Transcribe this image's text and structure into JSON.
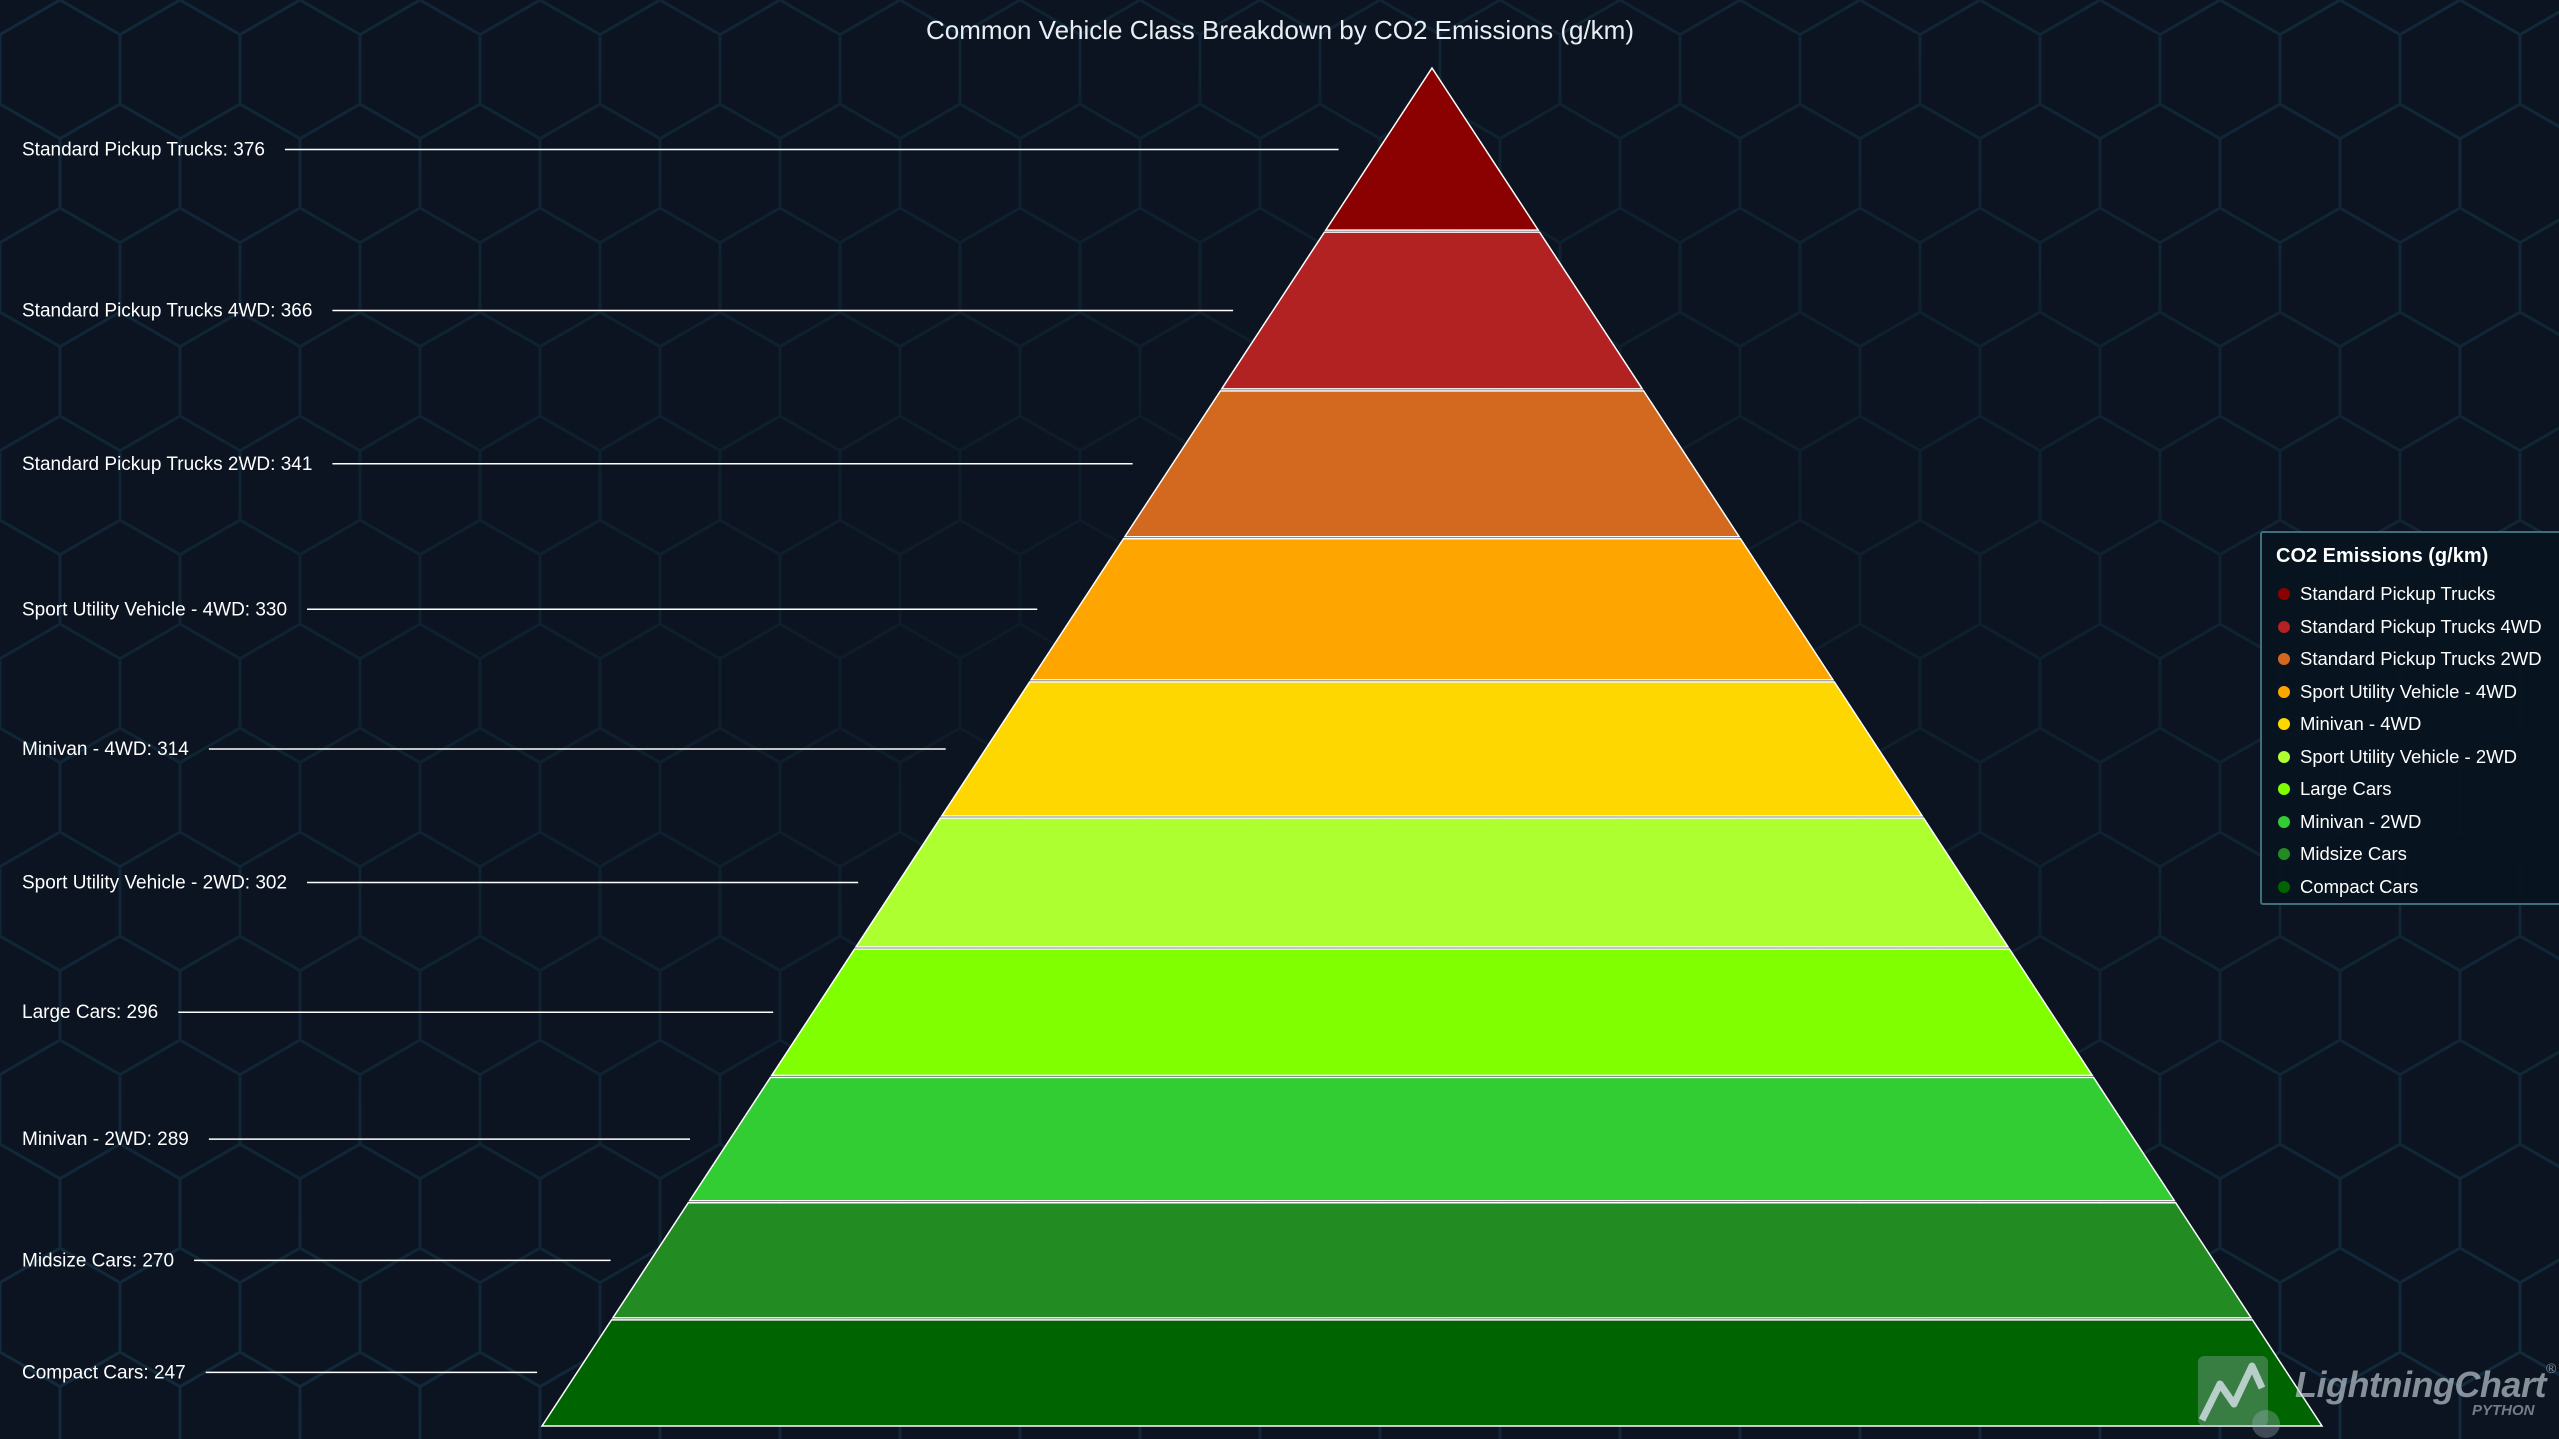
{
  "chart_data": {
    "type": "pyramid",
    "title": "Common Vehicle Class Breakdown by CO2 Emissions (g/km)",
    "legend_title": "CO2 Emissions (g/km)",
    "legend_position": "right",
    "categories": [
      "Standard Pickup Trucks",
      "Standard Pickup Trucks 4WD",
      "Standard Pickup Trucks 2WD",
      "Sport Utility Vehicle - 4WD",
      "Minivan - 4WD",
      "Sport Utility Vehicle - 2WD",
      "Large Cars",
      "Minivan - 2WD",
      "Midsize Cars",
      "Compact Cars"
    ],
    "values": [
      376,
      366,
      341,
      330,
      314,
      302,
      296,
      289,
      270,
      247
    ],
    "labels": [
      "Standard Pickup Trucks: 376",
      "Standard Pickup Trucks 4WD: 366",
      "Standard Pickup Trucks 2WD: 341",
      "Sport Utility Vehicle - 4WD: 330",
      "Minivan - 4WD: 314",
      "Sport Utility Vehicle - 2WD: 302",
      "Large Cars: 296",
      "Minivan - 2WD: 289",
      "Midsize Cars: 270",
      "Compact Cars: 247"
    ],
    "colors": [
      "#8b0000",
      "#b22222",
      "#d2691e",
      "#ffa500",
      "#ffd700",
      "#adff2f",
      "#7fff00",
      "#32cd32",
      "#228b22",
      "#006400"
    ]
  },
  "watermark": {
    "text": "LightningChart",
    "reg": "®",
    "sub": "PYTHON"
  },
  "theme": {
    "background": "#0b1420",
    "hex_line": "#123040",
    "slice_edge": "#ffffff",
    "leader_line": "#ffffff"
  }
}
